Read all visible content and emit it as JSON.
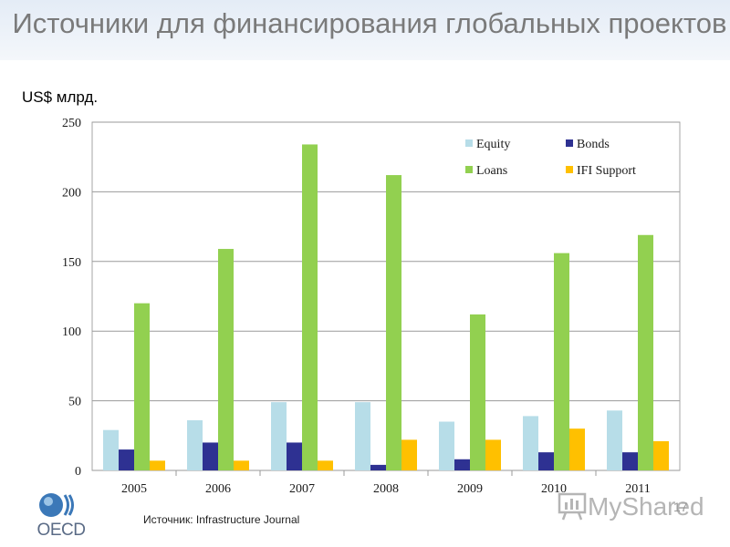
{
  "slide": {
    "title": "Источники для финансирования глобальных проектов",
    "unit_label": "US$ млрд.",
    "source_note": "Источник:  Infrastructure Journal",
    "page_number": "17"
  },
  "logo": {
    "text": "OECD",
    "icon": "oecd-globe-icon"
  },
  "watermark": {
    "text": "MyShared",
    "icon": "presentation-icon"
  },
  "colors": {
    "Equity": "#b7dde8",
    "Bonds": "#2e3192",
    "Loans": "#92d050",
    "IFI Support": "#ffc000",
    "title": "#7a7a7a"
  },
  "chart_data": {
    "type": "bar",
    "title": "",
    "ylabel": "US$ млрд.",
    "categories": [
      "2005",
      "2006",
      "2007",
      "2008",
      "2009",
      "2010",
      "2011"
    ],
    "ylim": [
      0,
      250
    ],
    "yticks": [
      0,
      50,
      100,
      150,
      200,
      250
    ],
    "grid": true,
    "legend_position": "top-right",
    "series": [
      {
        "name": "Equity",
        "values": [
          29,
          36,
          49,
          49,
          35,
          39,
          43
        ]
      },
      {
        "name": "Bonds",
        "values": [
          15,
          20,
          20,
          4,
          8,
          13,
          13
        ]
      },
      {
        "name": "Loans",
        "values": [
          120,
          159,
          234,
          212,
          112,
          156,
          169
        ]
      },
      {
        "name": "IFI Support",
        "values": [
          7,
          7,
          7,
          22,
          22,
          30,
          21
        ]
      }
    ]
  }
}
